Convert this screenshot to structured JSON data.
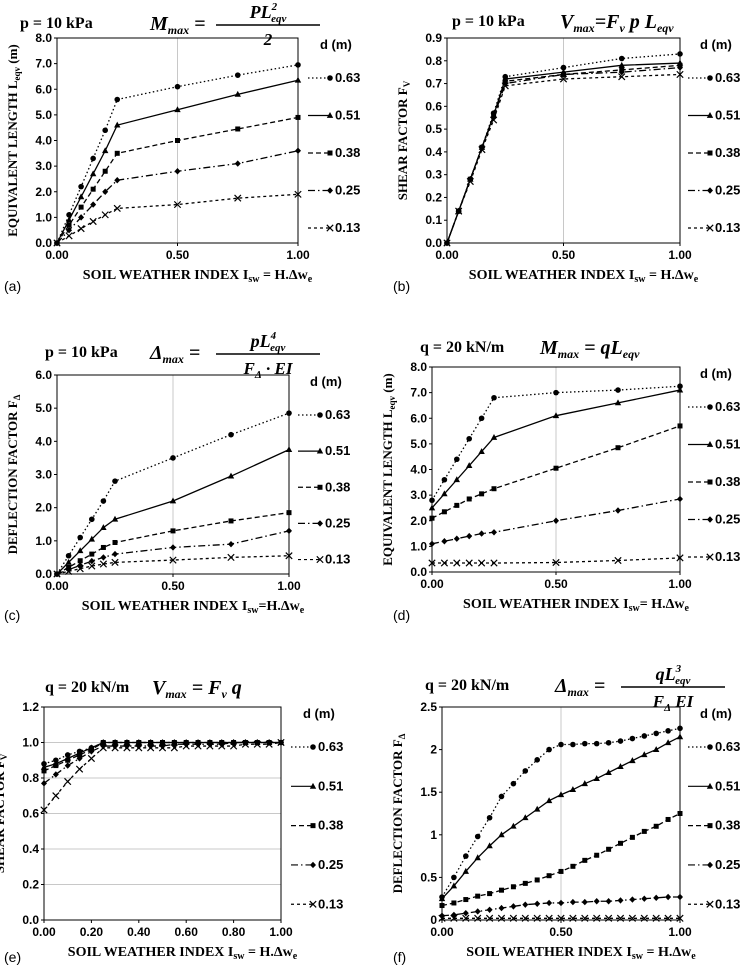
{
  "chart_data": [
    {
      "panel": "(a)",
      "type": "line",
      "title": "p = 10 kPa",
      "formula": {
        "lhs": "M",
        "lhs_sub": "max",
        "num": "PL",
        "num_sup": "2",
        "num_sub": "eqv",
        "den": "2"
      },
      "ylabel": "EQUIVALENT LENGTH L",
      "ylabel_sub": "eqv",
      "ylabel_unit": " (m)",
      "xlabel": "SOIL WEATHER INDEX I",
      "xlabel_sub": "sw",
      "xlabel_tail": " = H.Δw",
      "xlabel_tail_sub": "e",
      "legend_title": "d (m)",
      "xlim": [
        0,
        1
      ],
      "ylim": [
        0,
        8
      ],
      "xticks": [
        "0.00",
        "0.50",
        "1.00"
      ],
      "xtick_values": [
        0,
        0.5,
        1
      ],
      "yticks": [
        "0.0",
        "1.0",
        "2.0",
        "3.0",
        "4.0",
        "5.0",
        "6.0",
        "7.0",
        "8.0"
      ],
      "ytick_values": [
        0,
        1,
        2,
        3,
        4,
        5,
        6,
        7,
        8
      ],
      "gridx": [
        0.5,
        1
      ],
      "x": [
        0,
        0.05,
        0.1,
        0.15,
        0.2,
        0.25,
        0.5,
        0.75,
        1.0
      ],
      "series": [
        {
          "name": "0.63",
          "style": "dotted",
          "marker": "circle",
          "values": [
            0,
            1.1,
            2.2,
            3.3,
            4.4,
            5.6,
            6.1,
            6.55,
            6.95
          ]
        },
        {
          "name": "0.51",
          "style": "solid",
          "marker": "triangle",
          "values": [
            0,
            0.9,
            1.8,
            2.7,
            3.6,
            4.6,
            5.2,
            5.8,
            6.35
          ]
        },
        {
          "name": "0.38",
          "style": "dashed",
          "marker": "square",
          "values": [
            0,
            0.7,
            1.4,
            2.1,
            2.8,
            3.5,
            4.0,
            4.45,
            4.9
          ]
        },
        {
          "name": "0.25",
          "style": "dashdot",
          "marker": "diamond",
          "values": [
            0,
            0.5,
            1.0,
            1.5,
            2.0,
            2.45,
            2.8,
            3.1,
            3.6
          ]
        },
        {
          "name": "0.13",
          "style": "dashdot2",
          "marker": "x",
          "values": [
            0,
            0.28,
            0.56,
            0.84,
            1.1,
            1.35,
            1.5,
            1.75,
            1.9
          ]
        }
      ]
    },
    {
      "panel": "(b)",
      "type": "line",
      "title": "p = 10 kPa",
      "formula": {
        "text": "V",
        "sub": "max",
        "rest": "=F",
        "rest_sub": "v",
        "tail": " p L",
        "tail_sub": "eqv"
      },
      "ylabel": "SHEAR FACTOR  F",
      "ylabel_sub": "V",
      "ylabel_unit": "",
      "xlabel": "SOIL WEATHER INDEX I",
      "xlabel_sub": "sw",
      "xlabel_tail": " = H.Δw",
      "xlabel_tail_sub": "e",
      "legend_title": "d (m)",
      "xlim": [
        0,
        1
      ],
      "ylim": [
        0,
        0.9
      ],
      "xticks": [
        "0.00",
        "0.50",
        "1.00"
      ],
      "xtick_values": [
        0,
        0.5,
        1
      ],
      "yticks": [
        "0.0",
        "0.1",
        "0.2",
        "0.3",
        "0.4",
        "0.5",
        "0.6",
        "0.7",
        "0.8",
        "0.9"
      ],
      "ytick_values": [
        0,
        0.1,
        0.2,
        0.3,
        0.4,
        0.5,
        0.6,
        0.7,
        0.8,
        0.9
      ],
      "gridx": [
        0.5,
        1
      ],
      "x": [
        0,
        0.05,
        0.1,
        0.15,
        0.2,
        0.25,
        0.5,
        0.75,
        1.0
      ],
      "series": [
        {
          "name": "0.63",
          "style": "dotted",
          "marker": "circle",
          "values": [
            0,
            0.14,
            0.28,
            0.42,
            0.57,
            0.73,
            0.77,
            0.81,
            0.83
          ]
        },
        {
          "name": "0.51",
          "style": "solid",
          "marker": "triangle",
          "values": [
            0,
            0.14,
            0.28,
            0.42,
            0.56,
            0.72,
            0.75,
            0.78,
            0.79
          ]
        },
        {
          "name": "0.38",
          "style": "dashed",
          "marker": "square",
          "values": [
            0,
            0.14,
            0.28,
            0.42,
            0.56,
            0.71,
            0.74,
            0.76,
            0.78
          ]
        },
        {
          "name": "0.25",
          "style": "dashdot",
          "marker": "diamond",
          "values": [
            0,
            0.14,
            0.28,
            0.42,
            0.55,
            0.7,
            0.74,
            0.75,
            0.77
          ]
        },
        {
          "name": "0.13",
          "style": "dashdot2",
          "marker": "x",
          "values": [
            0,
            0.14,
            0.27,
            0.41,
            0.54,
            0.69,
            0.72,
            0.73,
            0.74
          ]
        }
      ]
    },
    {
      "panel": "(c)",
      "type": "line",
      "title": "p = 10 kPa",
      "formula": {
        "lhs": "Δ",
        "lhs_sub": "max",
        "num": "pL",
        "num_sup": "4",
        "num_sub": "eqv",
        "den": "F",
        "den_sub": "Δ",
        "den_tail": " · EI"
      },
      "ylabel": "DEFLECTION FACTOR F",
      "ylabel_sub": "Δ",
      "ylabel_unit": "",
      "xlabel": "SOIL WEATHER INDEX I",
      "xlabel_sub": "sw",
      "xlabel_tail": "=H.Δw",
      "xlabel_tail_sub": "e",
      "legend_title": "d (m)",
      "xlim": [
        0,
        1
      ],
      "ylim": [
        0,
        6
      ],
      "xticks": [
        "0.00",
        "0.50",
        "1.00"
      ],
      "xtick_values": [
        0,
        0.5,
        1
      ],
      "yticks": [
        "0.0",
        "1.0",
        "2.0",
        "3.0",
        "4.0",
        "5.0",
        "6.0"
      ],
      "ytick_values": [
        0,
        1,
        2,
        3,
        4,
        5,
        6
      ],
      "gridx": [
        0.5,
        1
      ],
      "x": [
        0,
        0.05,
        0.1,
        0.15,
        0.2,
        0.25,
        0.5,
        0.75,
        1.0
      ],
      "series": [
        {
          "name": "0.63",
          "style": "dotted",
          "marker": "circle",
          "values": [
            0,
            0.55,
            1.1,
            1.65,
            2.2,
            2.8,
            3.5,
            4.2,
            4.85
          ]
        },
        {
          "name": "0.51",
          "style": "solid",
          "marker": "triangle",
          "values": [
            0,
            0.35,
            0.7,
            1.05,
            1.4,
            1.65,
            2.2,
            2.95,
            3.75
          ]
        },
        {
          "name": "0.38",
          "style": "dashed",
          "marker": "square",
          "values": [
            0,
            0.2,
            0.4,
            0.6,
            0.8,
            0.95,
            1.3,
            1.6,
            1.85
          ]
        },
        {
          "name": "0.25",
          "style": "dashdot",
          "marker": "diamond",
          "values": [
            0,
            0.13,
            0.26,
            0.39,
            0.5,
            0.6,
            0.8,
            0.9,
            1.3
          ]
        },
        {
          "name": "0.13",
          "style": "dashdot2",
          "marker": "x",
          "values": [
            0,
            0.08,
            0.16,
            0.24,
            0.3,
            0.35,
            0.42,
            0.5,
            0.55
          ]
        }
      ]
    },
    {
      "panel": "(d)",
      "type": "line",
      "title": "q = 20 kN/m",
      "formula": {
        "text": "M",
        "sub": "max",
        "rest": " = qL",
        "rest_sub": "eqv"
      },
      "ylabel": "EQUIVALENT  LENGTH L",
      "ylabel_sub": "eqv",
      "ylabel_unit": " (m)",
      "xlabel": "SOIL WEATHER INDEX I",
      "xlabel_sub": "sw",
      "xlabel_tail": "= H.Δw",
      "xlabel_tail_sub": "e",
      "legend_title": "d (m)",
      "xlim": [
        0,
        1
      ],
      "ylim": [
        0,
        8
      ],
      "xticks": [
        "0.00",
        "0.50",
        "1.00"
      ],
      "xtick_values": [
        0,
        0.5,
        1
      ],
      "yticks": [
        "0.0",
        "1.0",
        "2.0",
        "3.0",
        "4.0",
        "5.0",
        "6.0",
        "7.0",
        "8.0"
      ],
      "ytick_values": [
        0,
        1,
        2,
        3,
        4,
        5,
        6,
        7,
        8
      ],
      "gridx": [
        0.5,
        1
      ],
      "x": [
        0,
        0.05,
        0.1,
        0.15,
        0.2,
        0.25,
        0.5,
        0.75,
        1.0
      ],
      "series": [
        {
          "name": "0.63",
          "style": "dotted",
          "marker": "circle",
          "values": [
            2.8,
            3.6,
            4.4,
            5.2,
            6.0,
            6.8,
            7.0,
            7.1,
            7.25
          ]
        },
        {
          "name": "0.51",
          "style": "solid",
          "marker": "triangle",
          "values": [
            2.5,
            3.05,
            3.6,
            4.15,
            4.7,
            5.25,
            6.1,
            6.6,
            7.1
          ]
        },
        {
          "name": "0.38",
          "style": "dashed",
          "marker": "square",
          "values": [
            2.1,
            2.35,
            2.6,
            2.85,
            3.05,
            3.25,
            4.05,
            4.85,
            5.7
          ]
        },
        {
          "name": "0.25",
          "style": "dashdot",
          "marker": "diamond",
          "values": [
            1.1,
            1.2,
            1.3,
            1.4,
            1.5,
            1.55,
            2.0,
            2.4,
            2.85
          ]
        },
        {
          "name": "0.13",
          "style": "dashdot2",
          "marker": "x",
          "values": [
            0.35,
            0.35,
            0.35,
            0.35,
            0.35,
            0.35,
            0.37,
            0.45,
            0.55
          ]
        }
      ]
    },
    {
      "panel": "(e)",
      "type": "line",
      "title": "q = 20 kN/m",
      "formula": {
        "text": "V",
        "sub": "max",
        "rest": " = F",
        "rest_sub": "v",
        "tail": " q",
        "tail_sub": ""
      },
      "ylabel": "SHEAR FACTOR F",
      "ylabel_sub": "V",
      "ylabel_unit": "",
      "xlabel": "SOIL WEATHER INDEX I",
      "xlabel_sub": "sw",
      "xlabel_tail": " = H.Δw",
      "xlabel_tail_sub": "e",
      "legend_title": "d (m)",
      "xlim": [
        0,
        1
      ],
      "ylim": [
        0,
        1.2
      ],
      "xticks": [
        "0.00",
        "0.20",
        "0.40",
        "0.60",
        "0.80",
        "1.00"
      ],
      "xtick_values": [
        0,
        0.2,
        0.4,
        0.6,
        0.8,
        1
      ],
      "yticks": [
        "0.0",
        "0.2",
        "0.4",
        "0.6",
        "0.8",
        "1.0",
        "1.2"
      ],
      "ytick_values": [
        0,
        0.2,
        0.4,
        0.6,
        0.8,
        1.0,
        1.2
      ],
      "gridx": [],
      "gridy": [
        0.2,
        0.4,
        0.6,
        0.8,
        1.0,
        1.2
      ],
      "x": [
        0,
        0.05,
        0.1,
        0.15,
        0.2,
        0.25,
        0.3,
        0.35,
        0.4,
        0.45,
        0.5,
        0.55,
        0.6,
        0.65,
        0.7,
        0.75,
        0.8,
        0.85,
        0.9,
        0.95,
        1.0
      ],
      "series": [
        {
          "name": "0.63",
          "style": "dotted",
          "marker": "circle",
          "values": [
            0.88,
            0.9,
            0.93,
            0.95,
            0.97,
            1.0,
            1.0,
            1.0,
            1.0,
            1.0,
            1.0,
            1.0,
            1.0,
            1.0,
            1.0,
            1.0,
            1.0,
            1.0,
            1.0,
            1.0,
            1.0
          ]
        },
        {
          "name": "0.51",
          "style": "solid",
          "marker": "triangle",
          "values": [
            0.86,
            0.88,
            0.91,
            0.94,
            0.97,
            1.0,
            1.0,
            1.0,
            1.0,
            1.0,
            1.0,
            1.0,
            1.0,
            1.0,
            1.0,
            1.0,
            1.0,
            1.0,
            1.0,
            1.0,
            1.0
          ]
        },
        {
          "name": "0.38",
          "style": "dashed",
          "marker": "square",
          "values": [
            0.84,
            0.87,
            0.9,
            0.93,
            0.96,
            1.0,
            1.0,
            1.0,
            1.0,
            1.0,
            1.0,
            1.0,
            1.0,
            1.0,
            1.0,
            1.0,
            1.0,
            1.0,
            1.0,
            1.0,
            1.0
          ]
        },
        {
          "name": "0.25",
          "style": "dashdot",
          "marker": "diamond",
          "values": [
            0.77,
            0.82,
            0.87,
            0.91,
            0.95,
            0.98,
            0.98,
            0.98,
            0.98,
            0.98,
            0.98,
            0.99,
            0.99,
            0.99,
            0.99,
            0.99,
            1.0,
            1.0,
            1.0,
            1.0,
            1.0
          ]
        },
        {
          "name": "0.13",
          "style": "dashdot2",
          "marker": "x",
          "values": [
            0.62,
            0.7,
            0.78,
            0.85,
            0.91,
            0.97,
            0.97,
            0.97,
            0.97,
            0.97,
            0.97,
            0.97,
            0.98,
            0.98,
            0.98,
            0.98,
            0.98,
            0.99,
            0.99,
            0.99,
            1.0
          ]
        }
      ]
    },
    {
      "panel": "(f)",
      "type": "line",
      "title": "q = 20 kN/m",
      "formula": {
        "lhs": "Δ",
        "lhs_sub": "max",
        "num": "qL",
        "num_sup": "3",
        "num_sub": "eqv",
        "den": "F",
        "den_sub": "Δ",
        "den_tail": " EI"
      },
      "ylabel": "DEFLECTION  FACTOR F",
      "ylabel_sub": "Δ",
      "ylabel_unit": "",
      "xlabel": "SOIL WEATHER INDEX I",
      "xlabel_sub": "sw",
      "xlabel_tail": " = H.Δw",
      "xlabel_tail_sub": "e",
      "legend_title": "d (m)",
      "xlim": [
        0,
        1
      ],
      "ylim": [
        0,
        2.5
      ],
      "xticks": [
        "0.00",
        "0.50",
        "1.00"
      ],
      "xtick_values": [
        0,
        0.5,
        1
      ],
      "yticks": [
        "0",
        "0.5",
        "1",
        "1.5",
        "2",
        "2.5"
      ],
      "ytick_values": [
        0,
        0.5,
        1,
        1.5,
        2,
        2.5
      ],
      "gridx": [
        0.5,
        1
      ],
      "x": [
        0,
        0.05,
        0.1,
        0.15,
        0.2,
        0.25,
        0.3,
        0.35,
        0.4,
        0.45,
        0.5,
        0.55,
        0.6,
        0.65,
        0.7,
        0.75,
        0.8,
        0.85,
        0.9,
        0.95,
        1.0
      ],
      "series": [
        {
          "name": "0.63",
          "style": "dotted",
          "marker": "circle",
          "values": [
            0.27,
            0.5,
            0.75,
            0.98,
            1.2,
            1.45,
            1.6,
            1.75,
            1.88,
            2.0,
            2.06,
            2.06,
            2.07,
            2.07,
            2.08,
            2.1,
            2.13,
            2.16,
            2.19,
            2.22,
            2.25
          ]
        },
        {
          "name": "0.51",
          "style": "solid",
          "marker": "triangle",
          "values": [
            0.25,
            0.4,
            0.57,
            0.73,
            0.87,
            1.0,
            1.1,
            1.2,
            1.3,
            1.4,
            1.47,
            1.53,
            1.6,
            1.66,
            1.73,
            1.8,
            1.87,
            1.94,
            2.0,
            2.08,
            2.15
          ]
        },
        {
          "name": "0.38",
          "style": "dashed",
          "marker": "square",
          "values": [
            0.17,
            0.2,
            0.24,
            0.28,
            0.31,
            0.35,
            0.39,
            0.43,
            0.47,
            0.52,
            0.57,
            0.63,
            0.7,
            0.76,
            0.83,
            0.9,
            0.97,
            1.04,
            1.1,
            1.18,
            1.25
          ]
        },
        {
          "name": "0.25",
          "style": "dashdot",
          "marker": "diamond",
          "values": [
            0.05,
            0.06,
            0.08,
            0.1,
            0.12,
            0.14,
            0.16,
            0.18,
            0.19,
            0.2,
            0.2,
            0.21,
            0.21,
            0.22,
            0.22,
            0.23,
            0.24,
            0.25,
            0.26,
            0.27,
            0.27
          ]
        },
        {
          "name": "0.13",
          "style": "dashdot2",
          "marker": "x",
          "values": [
            0.02,
            0.02,
            0.02,
            0.02,
            0.02,
            0.02,
            0.02,
            0.02,
            0.02,
            0.02,
            0.02,
            0.02,
            0.02,
            0.02,
            0.02,
            0.02,
            0.02,
            0.02,
            0.02,
            0.02,
            0.02
          ]
        }
      ]
    }
  ]
}
